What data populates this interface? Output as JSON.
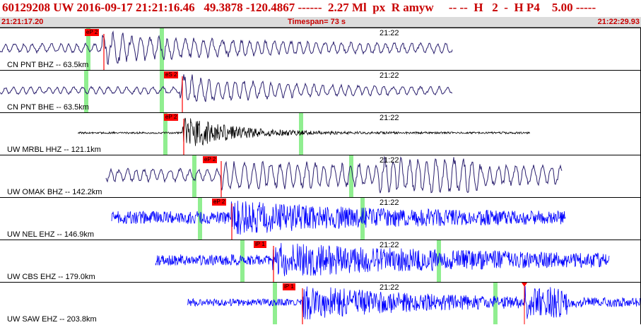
{
  "header": {
    "event_info": "60129208 UW 2016-09-17 21:21:16.46   49.3878 -120.4867 ------  2.27 Ml  px  R amyw     -- --  H   2  -  H P4    5.00 -----"
  },
  "time_bar": {
    "start": "21:21:17.20",
    "timespan": "Timespan= 73 s",
    "end": "21:22:29.93"
  },
  "colors": {
    "dark_trace": "#2a1f6e",
    "black_trace": "#000000",
    "blue_trace": "#0000ff",
    "pick_bg": "#ff0000",
    "marker": "#90ee90",
    "header_text": "#c80000"
  },
  "panels": [
    {
      "label": "CN PNT BHZ -- 63.5km",
      "minute": "21:22",
      "pick": "eP 2",
      "trace_color": "dark"
    },
    {
      "label": "CN PNT BHE -- 63.5km",
      "minute": "21:22",
      "pick": "eS 2",
      "trace_color": "dark"
    },
    {
      "label": "UW MRBL HHZ -- 121.1km",
      "minute": "21:22",
      "pick": "eP 2",
      "trace_color": "black"
    },
    {
      "label": "UW OMAK BHZ -- 142.2km",
      "minute": "21:22",
      "pick": "eP 2",
      "trace_color": "dark"
    },
    {
      "label": "UW NEL EHZ -- 146.9km",
      "minute": "21:22",
      "pick": "eP 2",
      "trace_color": "blue"
    },
    {
      "label": "UW CBS EHZ -- 179.0km",
      "minute": "21:22",
      "pick": "iP 1",
      "trace_color": "blue"
    },
    {
      "label": "UW SAW EHZ -- 203.8km",
      "minute": "21:22",
      "pick": "iP 1",
      "trace_color": "blue"
    }
  ]
}
